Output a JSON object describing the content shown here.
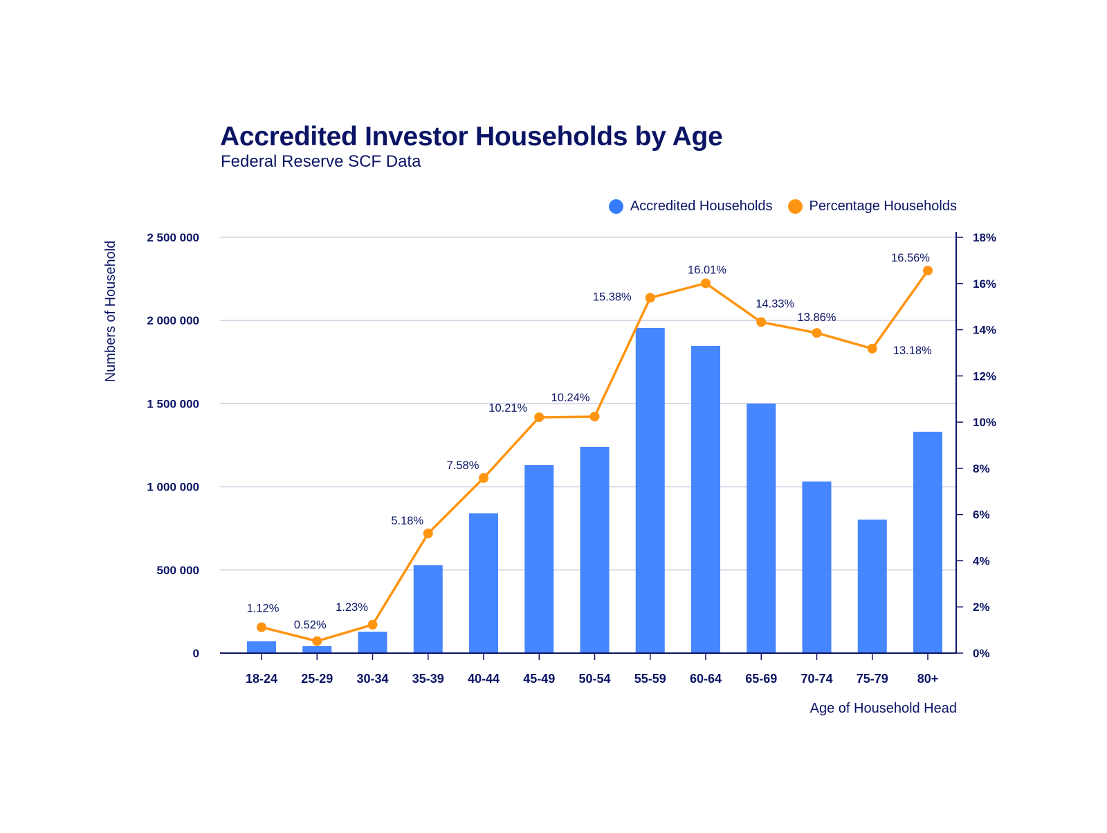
{
  "chart_data": {
    "type": "bar+line",
    "title": "Accredited Investor Households by Age",
    "subtitle": "Federal Reserve SCF Data",
    "xlabel": "Age of Household Head",
    "ylabel": "Numbers of Household",
    "y2label": "",
    "categories": [
      "18-24",
      "25-29",
      "30-34",
      "35-39",
      "40-44",
      "45-49",
      "50-54",
      "55-59",
      "60-64",
      "65-69",
      "70-74",
      "75-79",
      "80+"
    ],
    "series": [
      {
        "name": "Accredited Households",
        "type": "bar",
        "axis": "left",
        "color": "#367cff",
        "values": [
          71000,
          42000,
          129000,
          528000,
          840000,
          1131000,
          1240000,
          1955000,
          1847000,
          1500000,
          1032000,
          803000,
          1331000
        ]
      },
      {
        "name": "Percentage Households",
        "type": "line",
        "axis": "right",
        "color": "#ff9410",
        "values": [
          1.12,
          0.52,
          1.23,
          5.18,
          7.58,
          10.21,
          10.24,
          15.38,
          16.01,
          14.33,
          13.86,
          13.18,
          16.56
        ],
        "labels": [
          "1.12%",
          "0.52%",
          "1.23%",
          "5.18%",
          "7.58%",
          "10.21%",
          "10.24%",
          "15.38%",
          "16.01%",
          "14.33%",
          "13.86%",
          "13.18%",
          "16.56%"
        ]
      }
    ],
    "y_left": {
      "ylim": [
        0,
        2500000
      ],
      "ticks": [
        0,
        500000,
        1000000,
        1500000,
        2000000,
        2500000
      ],
      "tick_labels": [
        "0",
        "500 000",
        "1 000 000",
        "1 500 000",
        "2 000 000",
        "2 500 000"
      ]
    },
    "y_right": {
      "ylim": [
        0,
        18
      ],
      "ticks": [
        0,
        2,
        4,
        6,
        8,
        10,
        12,
        14,
        16,
        18
      ],
      "tick_labels": [
        "0%",
        "2%",
        "4%",
        "6%",
        "8%",
        "10%",
        "12%",
        "14%",
        "16%",
        "18%"
      ]
    },
    "grid": true,
    "legend": {
      "position": "top-right",
      "entries": [
        "Accredited Households",
        "Percentage Households"
      ]
    },
    "text_color": "#0b1464",
    "grid_color": "#d3d3e3"
  }
}
